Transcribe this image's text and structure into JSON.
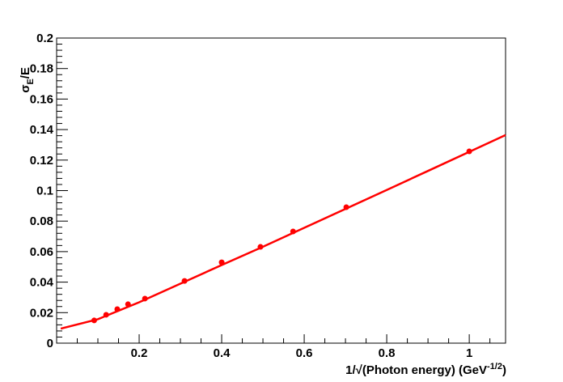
{
  "chart_data": {
    "type": "scatter",
    "xlabel": {
      "main": "1/√(Photon energy) (GeV",
      "sup": "-1/2",
      "end": ")"
    },
    "ylabel": {
      "main": "σ",
      "sub": "E",
      "end": "/E"
    },
    "xlim": [
      0,
      1.088
    ],
    "ylim": [
      0,
      0.2
    ],
    "xticks": [
      0.2,
      0.4,
      0.6,
      0.8,
      1
    ],
    "yticks": [
      0,
      0.02,
      0.04,
      0.06,
      0.08,
      0.1,
      0.12,
      0.14,
      0.16,
      0.18,
      0.2
    ],
    "color": "#ff0000",
    "points": {
      "x": [
        0.091,
        0.12,
        0.147,
        0.173,
        0.214,
        0.31,
        0.4,
        0.494,
        0.573,
        0.702,
        1.0
      ],
      "values": [
        0.0149,
        0.0186,
        0.0223,
        0.0255,
        0.0292,
        0.0408,
        0.053,
        0.0631,
        0.0732,
        0.0891,
        0.1257
      ]
    },
    "fit": {
      "x": [
        0.01,
        0.1,
        0.2,
        0.3,
        0.4,
        0.5,
        0.6,
        0.7,
        0.8,
        0.9,
        1.0,
        1.088
      ],
      "values": [
        0.0095,
        0.0157,
        0.0268,
        0.039,
        0.0512,
        0.0632,
        0.0756,
        0.088,
        0.1004,
        0.1129,
        0.1254,
        0.1364
      ]
    }
  }
}
